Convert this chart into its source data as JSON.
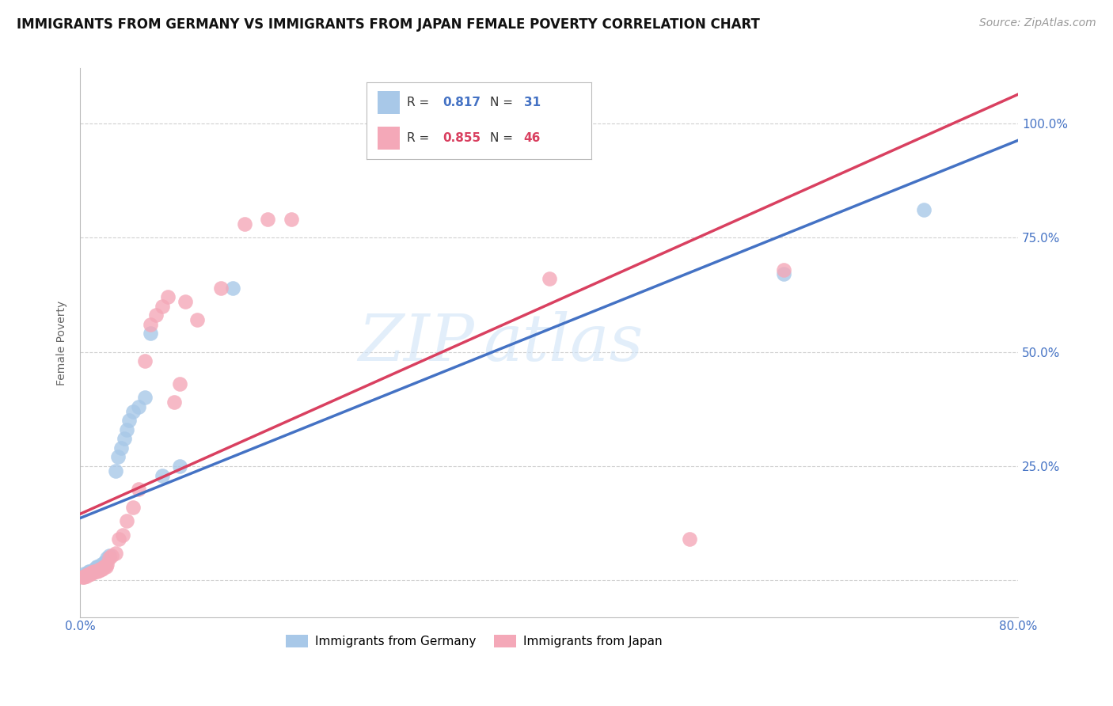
{
  "title": "IMMIGRANTS FROM GERMANY VS IMMIGRANTS FROM JAPAN FEMALE POVERTY CORRELATION CHART",
  "source": "Source: ZipAtlas.com",
  "ylabel": "Female Poverty",
  "xlim": [
    0.0,
    0.8
  ],
  "ylim": [
    -0.08,
    1.12
  ],
  "x_ticks": [
    0.0,
    0.1,
    0.2,
    0.3,
    0.4,
    0.5,
    0.6,
    0.7,
    0.8
  ],
  "x_tick_labels": [
    "0.0%",
    "",
    "",
    "",
    "",
    "",
    "",
    "",
    "80.0%"
  ],
  "y_ticks": [
    0.0,
    0.25,
    0.5,
    0.75,
    1.0
  ],
  "y_tick_labels": [
    "",
    "25.0%",
    "50.0%",
    "75.0%",
    "100.0%"
  ],
  "watermark_zip": "ZIP",
  "watermark_atlas": "atlas",
  "legend_germany_R": "0.817",
  "legend_germany_N": "31",
  "legend_japan_R": "0.855",
  "legend_japan_N": "46",
  "germany_color": "#a8c8e8",
  "japan_color": "#f4a8b8",
  "germany_line_color": "#4472c4",
  "japan_line_color": "#d94060",
  "grid_color": "#d0d0d0",
  "background_color": "#ffffff",
  "germany_scatter_x": [
    0.003,
    0.005,
    0.007,
    0.008,
    0.01,
    0.012,
    0.013,
    0.014,
    0.015,
    0.016,
    0.018,
    0.02,
    0.021,
    0.022,
    0.023,
    0.025,
    0.03,
    0.032,
    0.035,
    0.038,
    0.04,
    0.042,
    0.045,
    0.05,
    0.055,
    0.06,
    0.07,
    0.085,
    0.13,
    0.6,
    0.72
  ],
  "germany_scatter_y": [
    0.015,
    0.015,
    0.02,
    0.02,
    0.02,
    0.025,
    0.025,
    0.03,
    0.03,
    0.03,
    0.035,
    0.035,
    0.04,
    0.04,
    0.05,
    0.055,
    0.24,
    0.27,
    0.29,
    0.31,
    0.33,
    0.35,
    0.37,
    0.38,
    0.4,
    0.54,
    0.23,
    0.25,
    0.64,
    0.67,
    0.81
  ],
  "japan_scatter_x": [
    0.002,
    0.003,
    0.004,
    0.005,
    0.006,
    0.007,
    0.008,
    0.009,
    0.01,
    0.011,
    0.012,
    0.013,
    0.014,
    0.015,
    0.016,
    0.017,
    0.018,
    0.019,
    0.02,
    0.021,
    0.022,
    0.023,
    0.025,
    0.027,
    0.03,
    0.033,
    0.036,
    0.04,
    0.045,
    0.05,
    0.055,
    0.06,
    0.065,
    0.07,
    0.075,
    0.08,
    0.085,
    0.09,
    0.1,
    0.12,
    0.14,
    0.16,
    0.18,
    0.4,
    0.52,
    0.6
  ],
  "japan_scatter_y": [
    0.008,
    0.008,
    0.01,
    0.01,
    0.012,
    0.012,
    0.015,
    0.015,
    0.018,
    0.018,
    0.02,
    0.02,
    0.02,
    0.022,
    0.022,
    0.025,
    0.025,
    0.025,
    0.03,
    0.03,
    0.03,
    0.035,
    0.05,
    0.055,
    0.06,
    0.09,
    0.1,
    0.13,
    0.16,
    0.2,
    0.48,
    0.56,
    0.58,
    0.6,
    0.62,
    0.39,
    0.43,
    0.61,
    0.57,
    0.64,
    0.78,
    0.79,
    0.79,
    0.66,
    0.09,
    0.68
  ],
  "title_fontsize": 12,
  "source_fontsize": 10,
  "axis_label_fontsize": 10,
  "tick_fontsize": 11,
  "legend_fontsize": 11,
  "watermark_fontsize_zip": 60,
  "watermark_fontsize_atlas": 60
}
